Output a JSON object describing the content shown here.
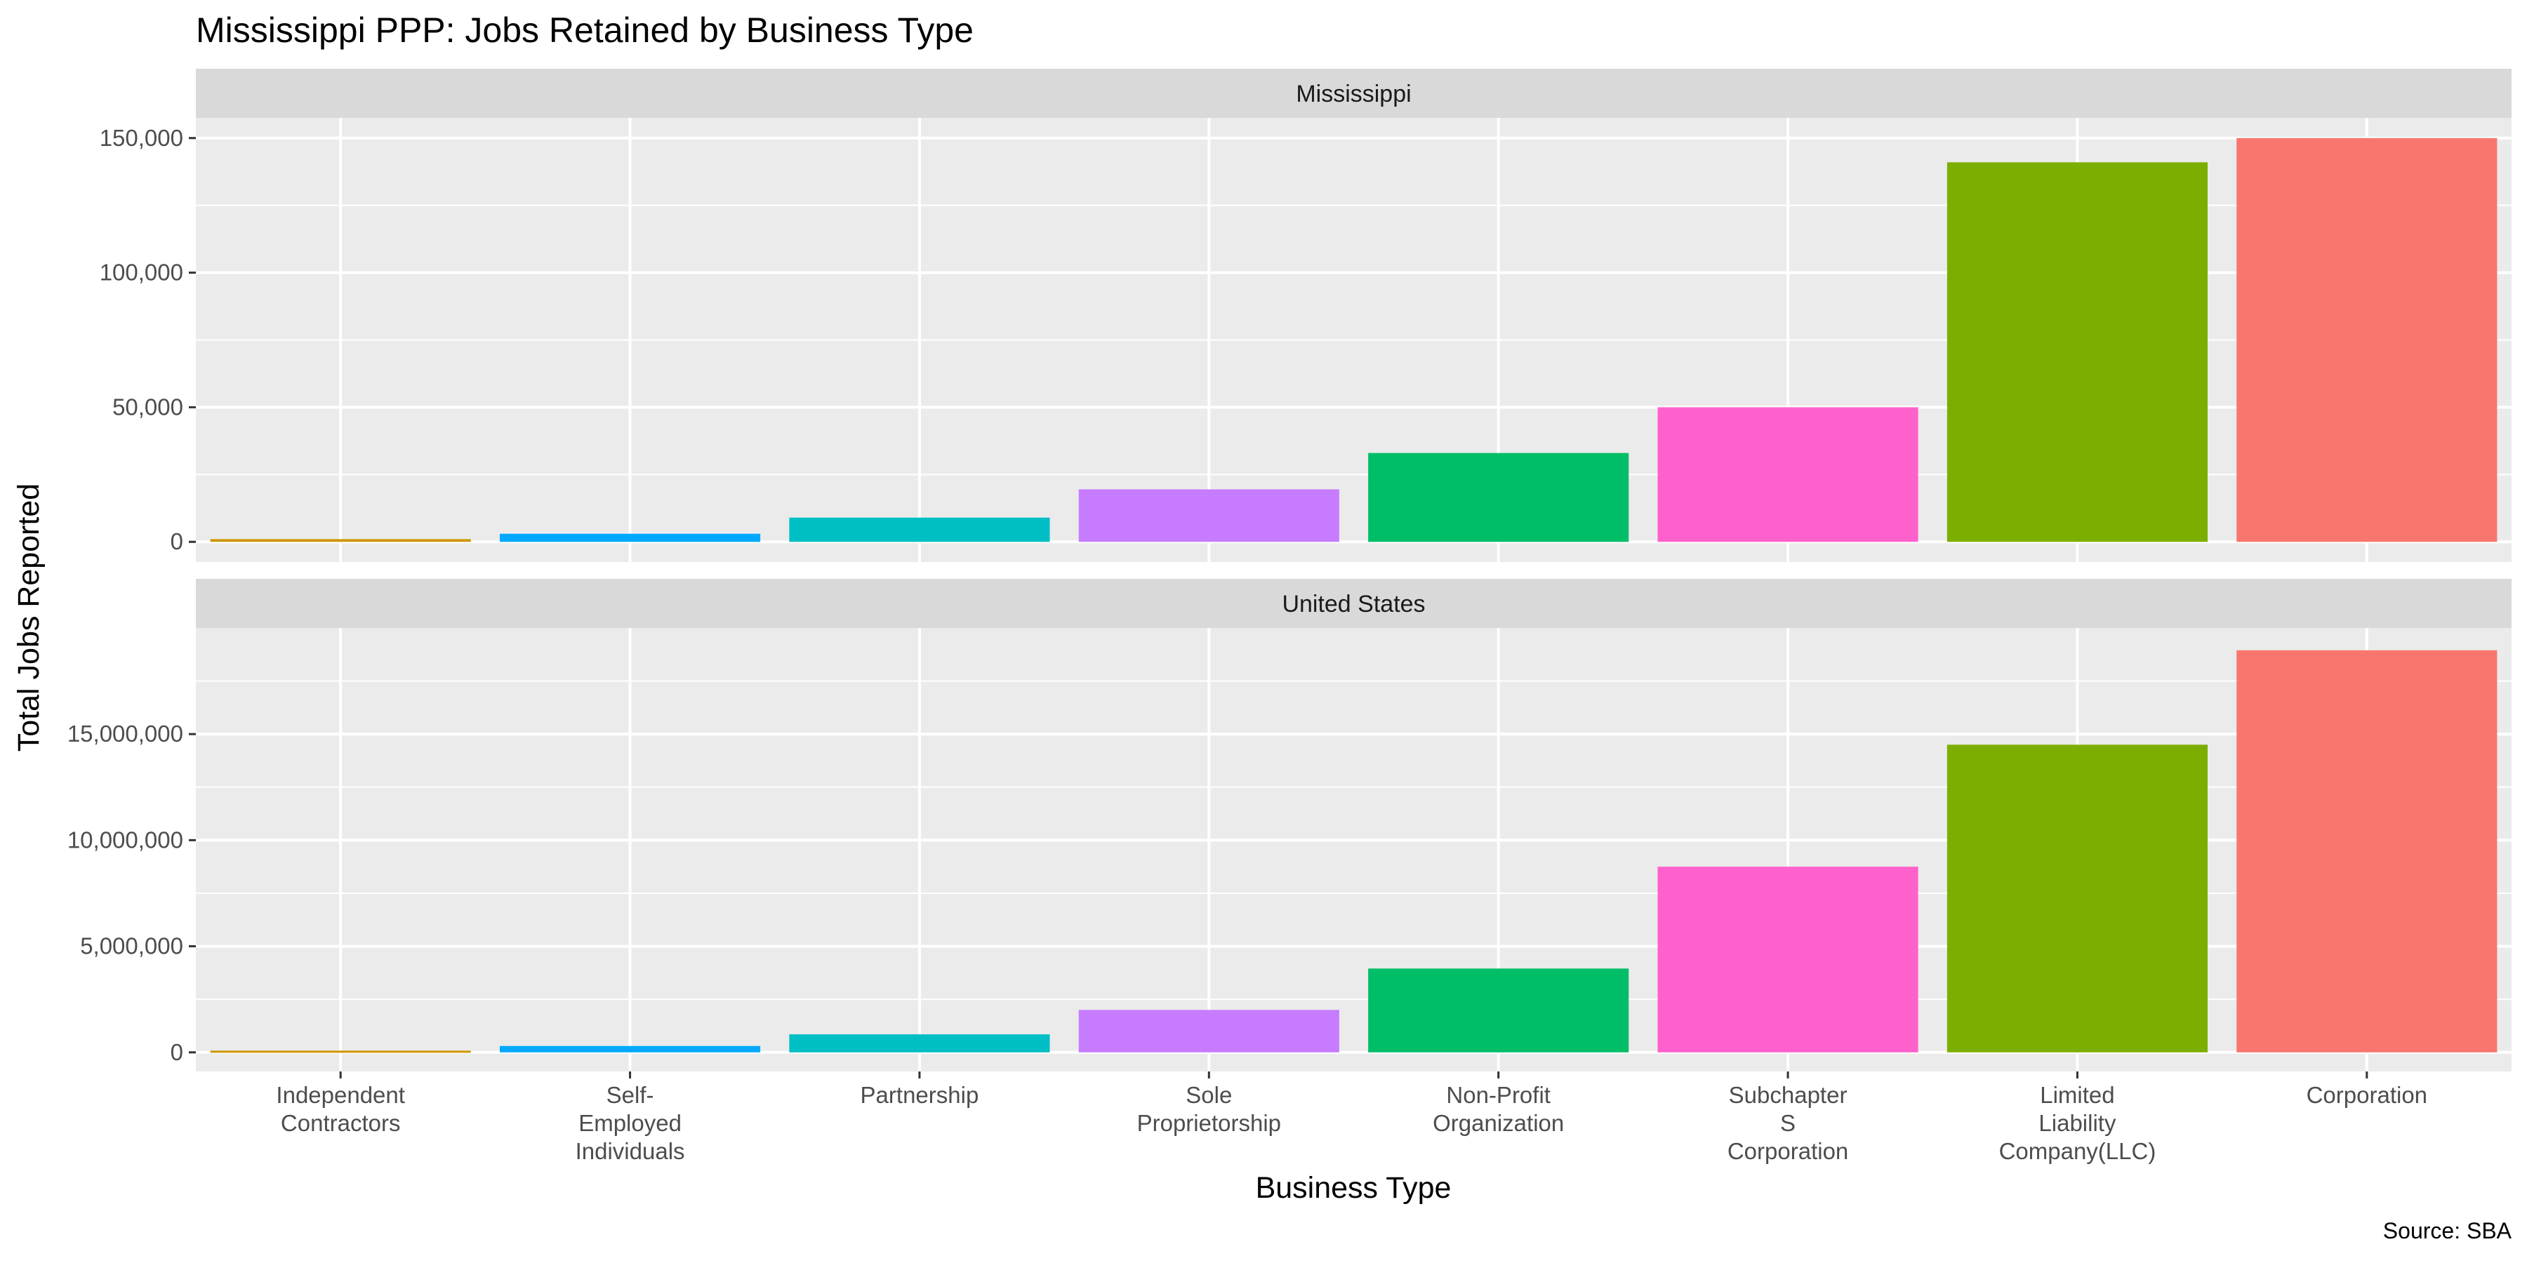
{
  "chart_data": {
    "type": "bar",
    "title": "Mississippi PPP: Jobs Retained by Business Type",
    "xlabel": "Business Type",
    "ylabel": "Total Jobs Reported",
    "caption": "Source: SBA",
    "grid": true,
    "legend": "none",
    "categories": [
      "Independent\nContractors",
      "Self-\nEmployed\nIndividuals",
      "Partnership",
      "Sole\nProprietorship",
      "Non-Profit\nOrganization",
      "Subchapter\nS\nCorporation",
      "Limited\nLiability\nCompany(LLC)",
      "Corporation"
    ],
    "colors": [
      "#CD9600",
      "#00A9FF",
      "#00BFC4",
      "#C77CFF",
      "#00BE67",
      "#FF61CC",
      "#7CAE00",
      "#F8766D"
    ],
    "panels": [
      {
        "label": "Mississippi",
        "values": [
          1000,
          3000,
          9000,
          19500,
          33000,
          50000,
          141000,
          150000
        ],
        "ylim": [
          -7500,
          157500
        ],
        "yticks": [
          0,
          50000,
          100000,
          150000
        ],
        "ytick_labels": [
          "0",
          "50,000",
          "100,000",
          "150,000"
        ]
      },
      {
        "label": "United States",
        "values": [
          80000,
          300000,
          850000,
          2000000,
          3950000,
          8750000,
          14500000,
          18950000
        ],
        "ylim": [
          -900000,
          20000000
        ],
        "yticks": [
          0,
          5000000,
          10000000,
          15000000
        ],
        "ytick_labels": [
          "0",
          "5,000,000",
          "10,000,000",
          "15,000,000"
        ]
      }
    ]
  }
}
